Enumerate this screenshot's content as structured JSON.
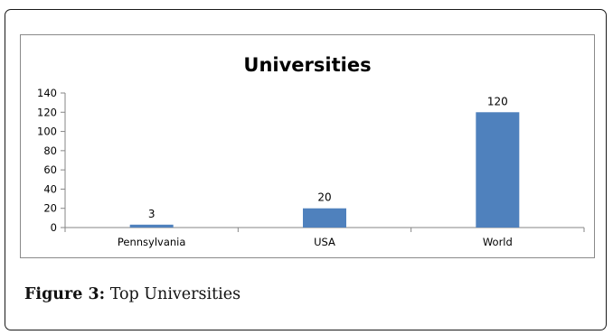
{
  "figure": {
    "caption_label": "Figure 3:",
    "caption_text": " Top Universities"
  },
  "chart_data": {
    "type": "bar",
    "title": "Universities",
    "categories": [
      "Pennsylvania",
      "USA",
      "World"
    ],
    "values": [
      3,
      20,
      120
    ],
    "data_labels": [
      "3",
      "20",
      "120"
    ],
    "xlabel": "",
    "ylabel": "",
    "ylim": [
      0,
      140
    ],
    "yticks": [
      0,
      20,
      40,
      60,
      80,
      100,
      120,
      140
    ],
    "grid": false,
    "legend": "none",
    "bar_color": "#4f81bd"
  }
}
